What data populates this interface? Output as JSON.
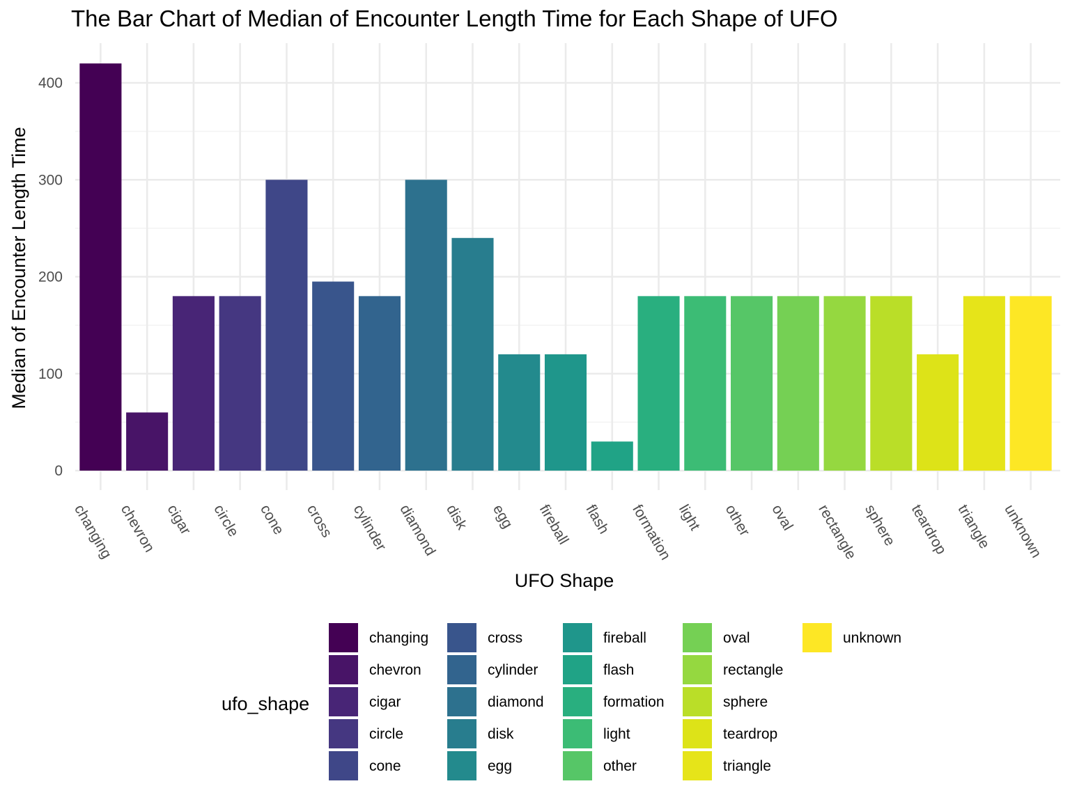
{
  "chart_data": {
    "type": "bar",
    "title": "The Bar Chart of Median of Encounter Length Time for Each Shape of UFO",
    "xlabel": "UFO Shape",
    "ylabel": "Median of Encounter Length Time",
    "categories": [
      "changing",
      "chevron",
      "cigar",
      "circle",
      "cone",
      "cross",
      "cylinder",
      "diamond",
      "disk",
      "egg",
      "fireball",
      "flash",
      "formation",
      "light",
      "other",
      "oval",
      "rectangle",
      "sphere",
      "teardrop",
      "triangle",
      "unknown"
    ],
    "values": [
      420,
      60,
      180,
      180,
      300,
      195,
      180,
      300,
      240,
      120,
      120,
      30,
      180,
      180,
      180,
      180,
      180,
      180,
      120,
      180,
      180
    ],
    "colors": [
      "#440154",
      "#481467",
      "#482576",
      "#453781",
      "#3F4788",
      "#39558C",
      "#32648E",
      "#2D718E",
      "#287D8E",
      "#238A8D",
      "#1F968B",
      "#20A386",
      "#29AF7F",
      "#3CBC75",
      "#56C667",
      "#75D054",
      "#95D840",
      "#BADE28",
      "#DDE318",
      "#E6E419",
      "#FDE725"
    ],
    "ylim": [
      0,
      440
    ],
    "y_ticks": [
      0,
      100,
      200,
      300,
      400
    ],
    "grid": true,
    "legend": {
      "title": "ufo_shape",
      "placement": "bottom",
      "columns": 5
    }
  }
}
